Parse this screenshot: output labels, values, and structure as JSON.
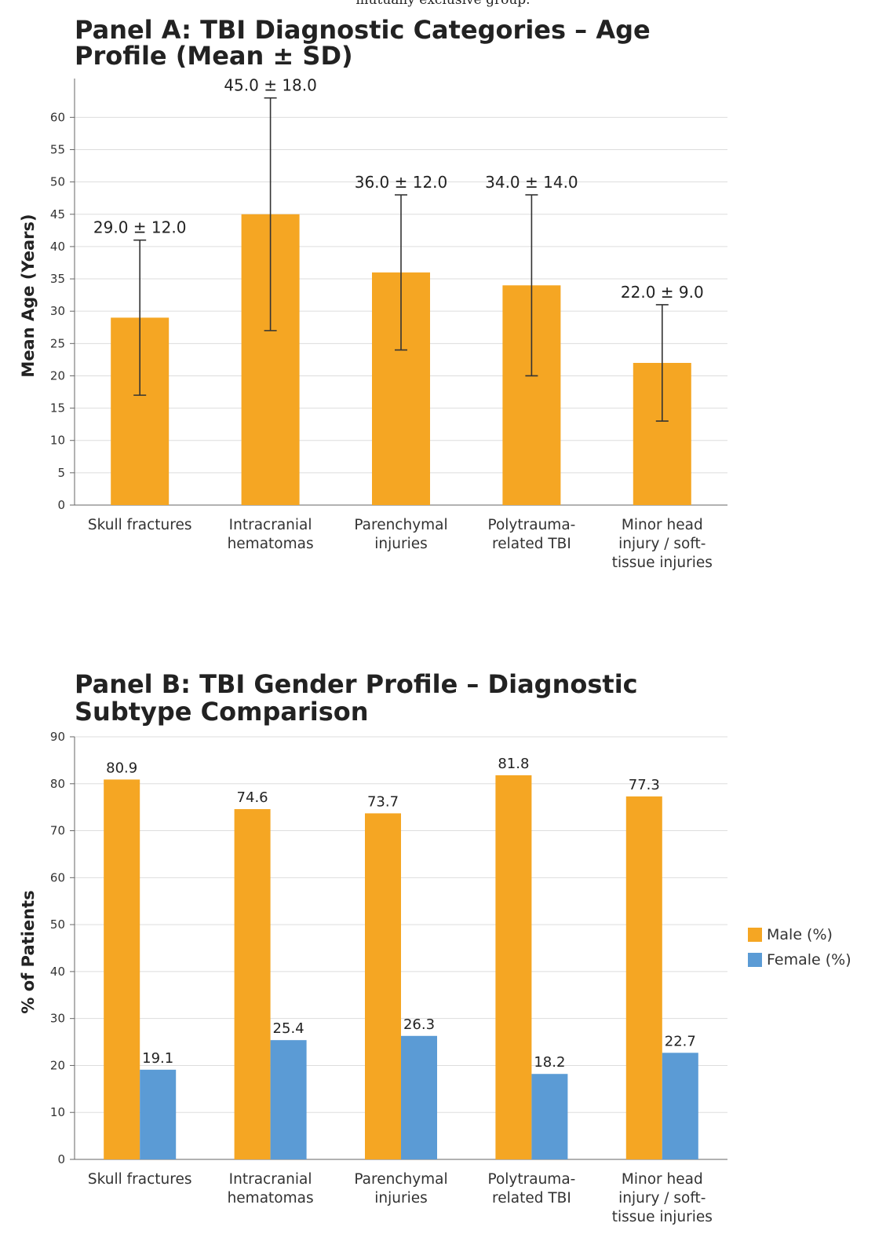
{
  "top_note": "mutually exclusive group.",
  "chart_data": [
    {
      "type": "bar",
      "title": [
        "Panel A:    TBI Diagnostic Categories – Age",
        "Profile (Mean ± SD)"
      ],
      "categories": [
        [
          "Skull fractures"
        ],
        [
          "Intracranial",
          "hematomas"
        ],
        [
          "Parenchymal",
          "injuries"
        ],
        [
          "Polytrauma-",
          "related TBI"
        ],
        [
          "Minor head",
          "injury / soft-",
          "tissue injuries"
        ]
      ],
      "values": [
        29.0,
        45.0,
        36.0,
        34.0,
        22.0
      ],
      "sd": [
        12.0,
        18.0,
        12.0,
        14.0,
        9.0
      ],
      "value_labels": [
        "29.0 ± 12.0",
        "45.0 ± 18.0",
        "36.0 ± 12.0",
        "34.0 ± 14.0",
        "22.0 ± 9.0"
      ],
      "xlabel": "",
      "ylabel": "Mean Age (Years)",
      "ylim": [
        0,
        66
      ],
      "yticks": [
        0,
        5,
        10,
        15,
        20,
        25,
        30,
        35,
        40,
        45,
        50,
        55,
        60
      ],
      "grid": true,
      "color": "#f5a623"
    },
    {
      "type": "bar",
      "title": [
        "Panel B:    TBI Gender Profile – Diagnostic",
        "Subtype Comparison"
      ],
      "categories": [
        [
          "Skull fractures"
        ],
        [
          "Intracranial",
          "hematomas"
        ],
        [
          "Parenchymal",
          "injuries"
        ],
        [
          "Polytrauma-",
          "related TBI"
        ],
        [
          "Minor head",
          "injury / soft-",
          "tissue injuries"
        ]
      ],
      "series": [
        {
          "name": "Male (%)",
          "values": [
            80.9,
            74.6,
            73.7,
            81.8,
            77.3
          ],
          "color": "#f5a623"
        },
        {
          "name": "Female (%)",
          "values": [
            19.1,
            25.4,
            26.3,
            18.2,
            22.7
          ],
          "color": "#5b9bd5"
        }
      ],
      "xlabel": "",
      "ylabel": "% of Patients",
      "ylim": [
        0,
        90
      ],
      "yticks": [
        0,
        10,
        20,
        30,
        40,
        50,
        60,
        70,
        80,
        90
      ],
      "grid": true,
      "legend": "right"
    }
  ]
}
